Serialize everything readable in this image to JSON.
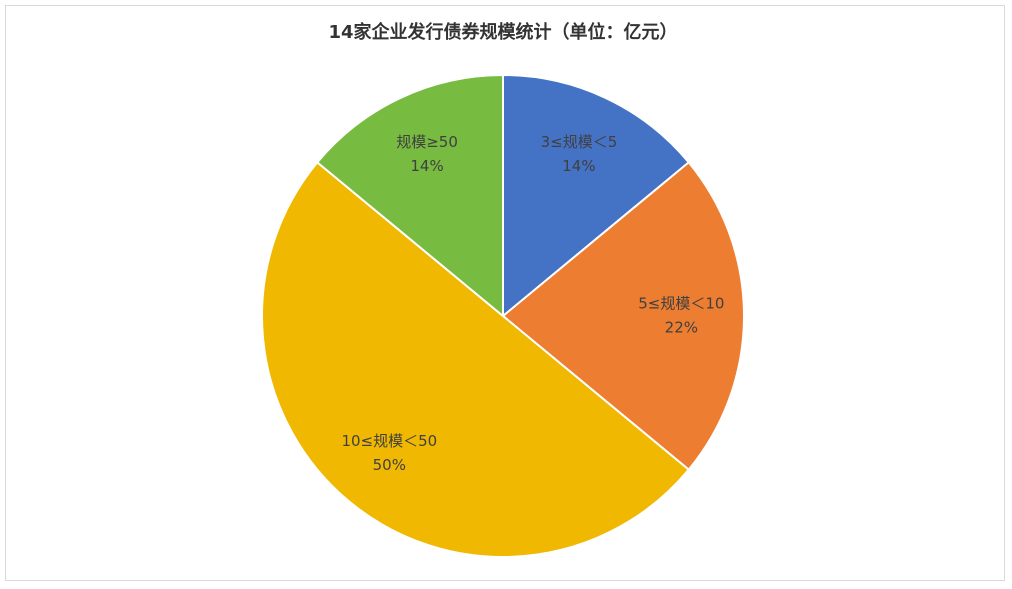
{
  "chart_data": {
    "type": "pie",
    "title": "14家企业发行债券规模统计（单位：亿元）",
    "categories": [
      "3≤规模＜5",
      "5≤规模＜10",
      "10≤规模＜50",
      "规模≥50"
    ],
    "values": [
      14,
      22,
      50,
      14
    ],
    "value_labels": [
      "14%",
      "22%",
      "50%",
      "14%"
    ],
    "colors": [
      "#4472c4",
      "#ed7d31",
      "#f0b800",
      "#77bb41"
    ]
  }
}
